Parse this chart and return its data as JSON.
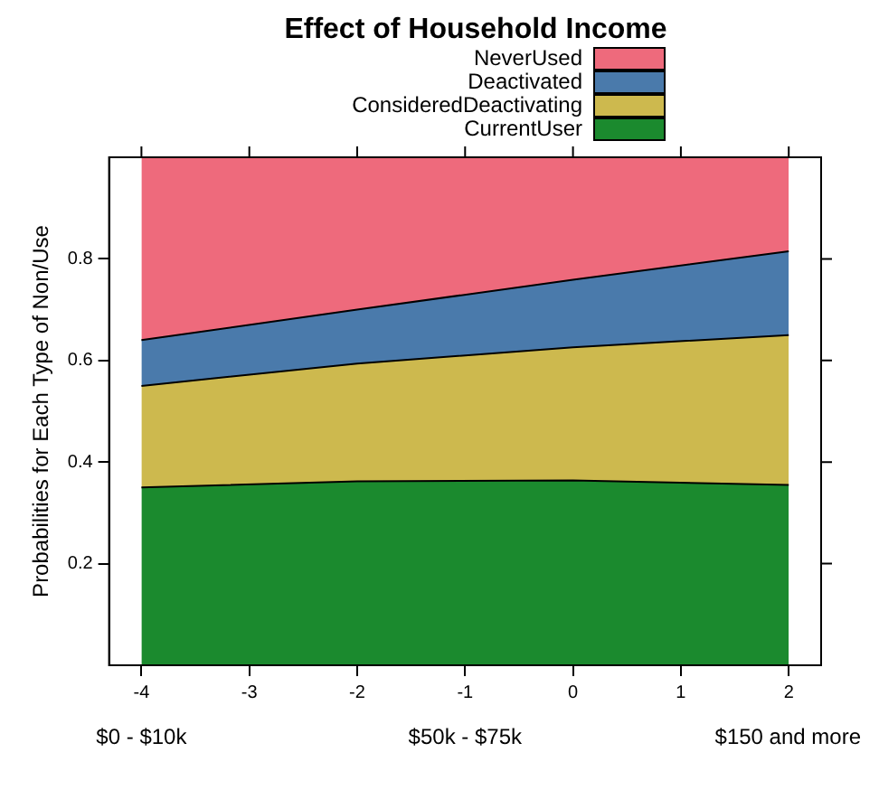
{
  "chart_data": {
    "type": "area",
    "title": "Effect of Household Income",
    "ylabel": "Probabilities for Each Type of Non/Use",
    "stacked": true,
    "legend": "top",
    "grid": false,
    "x": [
      -4,
      -2,
      0,
      2
    ],
    "xlim": [
      -4.3,
      2.3
    ],
    "xticks": [
      -4,
      -3,
      -2,
      -1,
      0,
      1,
      2
    ],
    "annotations": [
      "$0 - $10k",
      "$50k - $75k",
      "$150 and more"
    ],
    "ylim": [
      0,
      1
    ],
    "yticks": [
      0.2,
      0.4,
      0.6,
      0.8
    ],
    "series": [
      {
        "name": "CurrentUser",
        "color": "#1b8a2e",
        "values": [
          0.35,
          0.362,
          0.364,
          0.355
        ]
      },
      {
        "name": "ConsideredDeactivating",
        "color": "#cdb94e",
        "values": [
          0.2,
          0.232,
          0.262,
          0.295
        ]
      },
      {
        "name": "Deactivated",
        "color": "#4a7aab",
        "values": [
          0.09,
          0.106,
          0.133,
          0.165
        ]
      },
      {
        "name": "NeverUsed",
        "color": "#ee6a7c",
        "values": [
          0.36,
          0.3,
          0.241,
          0.185
        ]
      }
    ]
  }
}
